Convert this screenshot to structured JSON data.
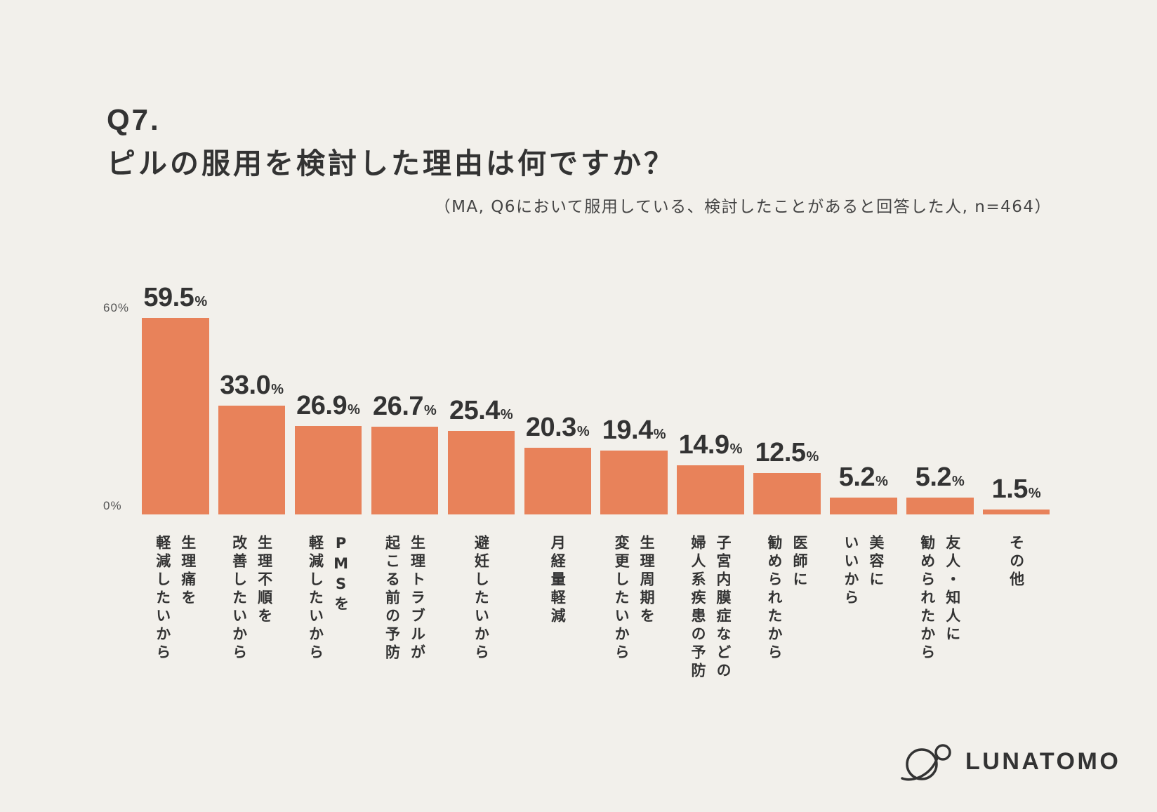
{
  "chart_data": {
    "type": "bar",
    "question": "Q7.",
    "title": "ピルの服用を検討した理由は何ですか？",
    "subtitle": "（MA, Q6において服用している、検討したことがあると回答した人, n=464）",
    "categories": [
      [
        "生理痛を",
        "軽減したいから"
      ],
      [
        "生理不順を",
        "改善したいから"
      ],
      [
        "PMSを",
        "軽減したいから"
      ],
      [
        "生理トラブルが",
        "起こる前の予防"
      ],
      [
        "避妊したいから"
      ],
      [
        "月経量軽減"
      ],
      [
        "生理周期を",
        "変更したいから"
      ],
      [
        "子宮内膜症などの",
        "婦人系疾患の予防"
      ],
      [
        "医師に",
        "勧められたから"
      ],
      [
        "美容に",
        "いいから"
      ],
      [
        "友人・知人に",
        "勧められたから"
      ],
      [
        "その他"
      ]
    ],
    "values": [
      59.5,
      33.0,
      26.9,
      26.7,
      25.4,
      20.3,
      19.4,
      14.9,
      12.5,
      5.2,
      5.2,
      1.5
    ],
    "value_unit": "%",
    "ylim": [
      0,
      60
    ],
    "yticks": [
      0,
      60
    ],
    "ytick_labels": [
      "0%",
      "60%"
    ]
  },
  "footer": {
    "brand": "LUNATOMO",
    "logo_icon": "planet-orbit-icon"
  },
  "colors": {
    "bar": "#E8825A",
    "background": "#F2F0EB"
  }
}
